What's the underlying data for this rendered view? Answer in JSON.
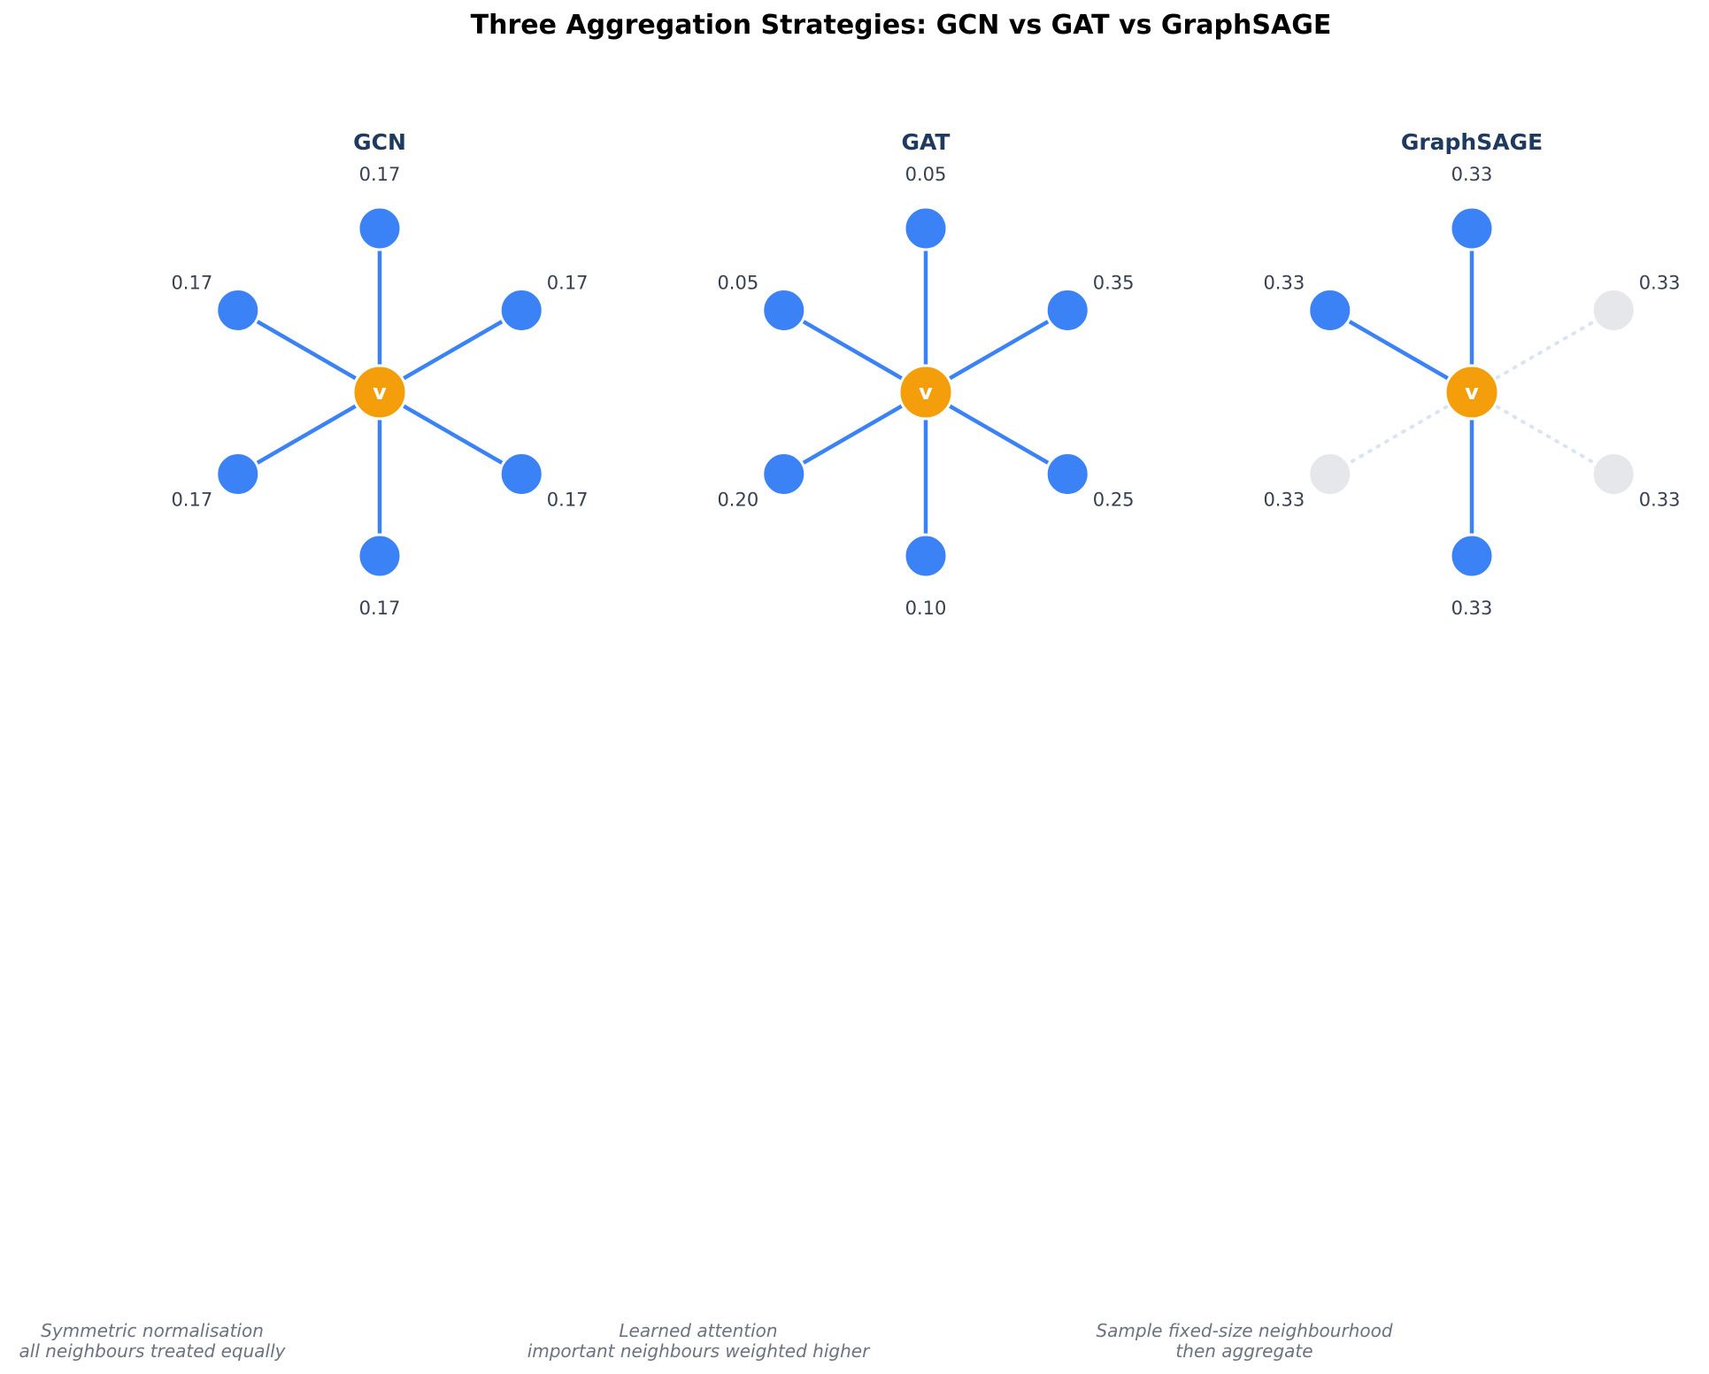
{
  "title": "Three Aggregation Strategies: GCN vs GAT vs GraphSAGE",
  "center_node_label": "v",
  "colors": {
    "neighbour": "#3b82f6",
    "center": "#f59e0b",
    "edge": "#3b82f6",
    "unsampled_node": "#e5e7eb",
    "unsampled_edge": "#dbe5f1",
    "panel_title": "#1e3a5f"
  },
  "panels": [
    {
      "name": "GCN",
      "neighbours": [
        {
          "position": "top",
          "weight": "0.17",
          "sampled": true
        },
        {
          "position": "upper-right",
          "weight": "0.17",
          "sampled": true
        },
        {
          "position": "lower-right",
          "weight": "0.17",
          "sampled": true
        },
        {
          "position": "bottom",
          "weight": "0.17",
          "sampled": true
        },
        {
          "position": "lower-left",
          "weight": "0.17",
          "sampled": true
        },
        {
          "position": "upper-left",
          "weight": "0.17",
          "sampled": true
        }
      ],
      "caption": [
        "Symmetric normalisation",
        "all neighbours treated equally"
      ]
    },
    {
      "name": "GAT",
      "neighbours": [
        {
          "position": "top",
          "weight": "0.05",
          "sampled": true
        },
        {
          "position": "upper-right",
          "weight": "0.35",
          "sampled": true
        },
        {
          "position": "lower-right",
          "weight": "0.25",
          "sampled": true
        },
        {
          "position": "bottom",
          "weight": "0.10",
          "sampled": true
        },
        {
          "position": "lower-left",
          "weight": "0.20",
          "sampled": true
        },
        {
          "position": "upper-left",
          "weight": "0.05",
          "sampled": true
        }
      ],
      "caption": [
        "Learned attention",
        "important neighbours weighted higher"
      ]
    },
    {
      "name": "GraphSAGE",
      "neighbours": [
        {
          "position": "top",
          "weight": "0.33",
          "sampled": true
        },
        {
          "position": "upper-right",
          "weight": "0.33",
          "sampled": false
        },
        {
          "position": "lower-right",
          "weight": "0.33",
          "sampled": false
        },
        {
          "position": "bottom",
          "weight": "0.33",
          "sampled": true
        },
        {
          "position": "lower-left",
          "weight": "0.33",
          "sampled": false
        },
        {
          "position": "upper-left",
          "weight": "0.33",
          "sampled": true
        }
      ],
      "caption": [
        "Sample fixed-size neighbourhood",
        "then aggregate"
      ]
    }
  ]
}
